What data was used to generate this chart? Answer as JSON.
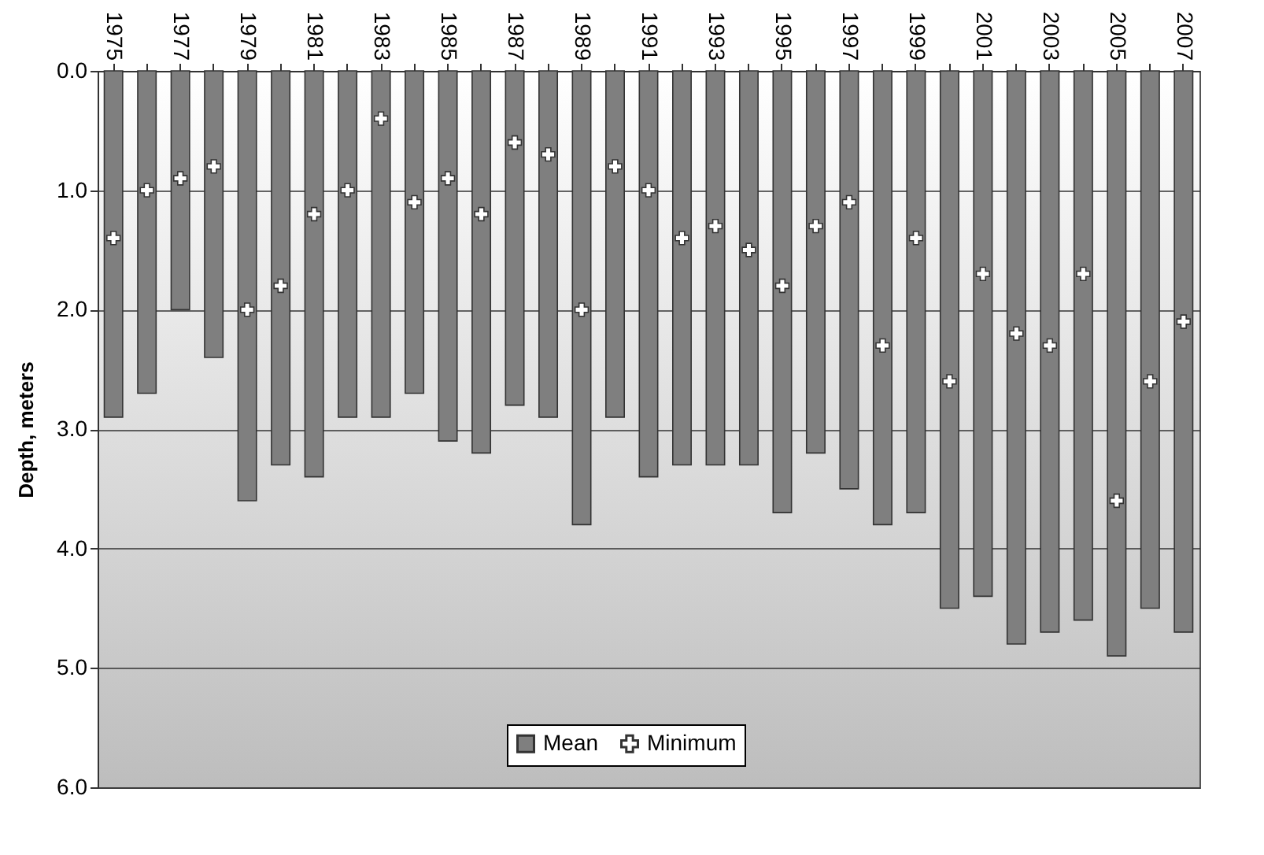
{
  "chart_data": {
    "type": "bar",
    "ylabel": "Depth, meters",
    "categories": [
      "1975",
      null,
      "1977",
      null,
      "1979",
      null,
      "1981",
      null,
      "1983",
      null,
      "1985",
      null,
      "1987",
      null,
      "1989",
      null,
      "1991",
      null,
      "1993",
      null,
      "1995",
      null,
      "1997",
      null,
      "1999",
      null,
      "2001",
      null,
      "2003",
      null,
      "2005",
      null,
      "2007"
    ],
    "series": [
      {
        "name": "Mean",
        "type": "bar",
        "color": "#7f7f7f",
        "values": [
          2.9,
          2.7,
          2.0,
          2.4,
          3.6,
          3.3,
          3.4,
          2.9,
          2.9,
          2.7,
          3.1,
          3.2,
          2.8,
          2.9,
          3.8,
          2.9,
          3.4,
          3.3,
          3.3,
          3.3,
          3.7,
          3.2,
          3.5,
          3.8,
          3.7,
          4.5,
          4.4,
          4.8,
          4.7,
          4.6,
          4.9,
          4.5,
          4.7
        ]
      },
      {
        "name": "Minimum",
        "type": "scatter",
        "color": "#ffffff",
        "values": [
          1.4,
          1.0,
          0.9,
          0.8,
          2.0,
          1.8,
          1.2,
          1.0,
          0.4,
          1.1,
          0.9,
          1.2,
          0.6,
          0.7,
          2.0,
          0.8,
          1.0,
          1.4,
          1.3,
          1.5,
          1.8,
          1.3,
          1.1,
          2.3,
          1.4,
          2.6,
          1.7,
          2.2,
          2.3,
          1.7,
          3.6,
          2.6,
          2.1
        ]
      }
    ],
    "ylim": [
      6,
      0
    ],
    "yticks": [
      {
        "value": 0,
        "label": "0.0"
      },
      {
        "value": 1,
        "label": "1.0"
      },
      {
        "value": 2,
        "label": "2.0"
      },
      {
        "value": 3,
        "label": "3.0"
      },
      {
        "value": 4,
        "label": "4.0"
      },
      {
        "value": 5,
        "label": "5.0"
      },
      {
        "value": 6,
        "label": "6.0"
      }
    ],
    "grid": "y",
    "legend": "bottom",
    "marker": "cross"
  }
}
